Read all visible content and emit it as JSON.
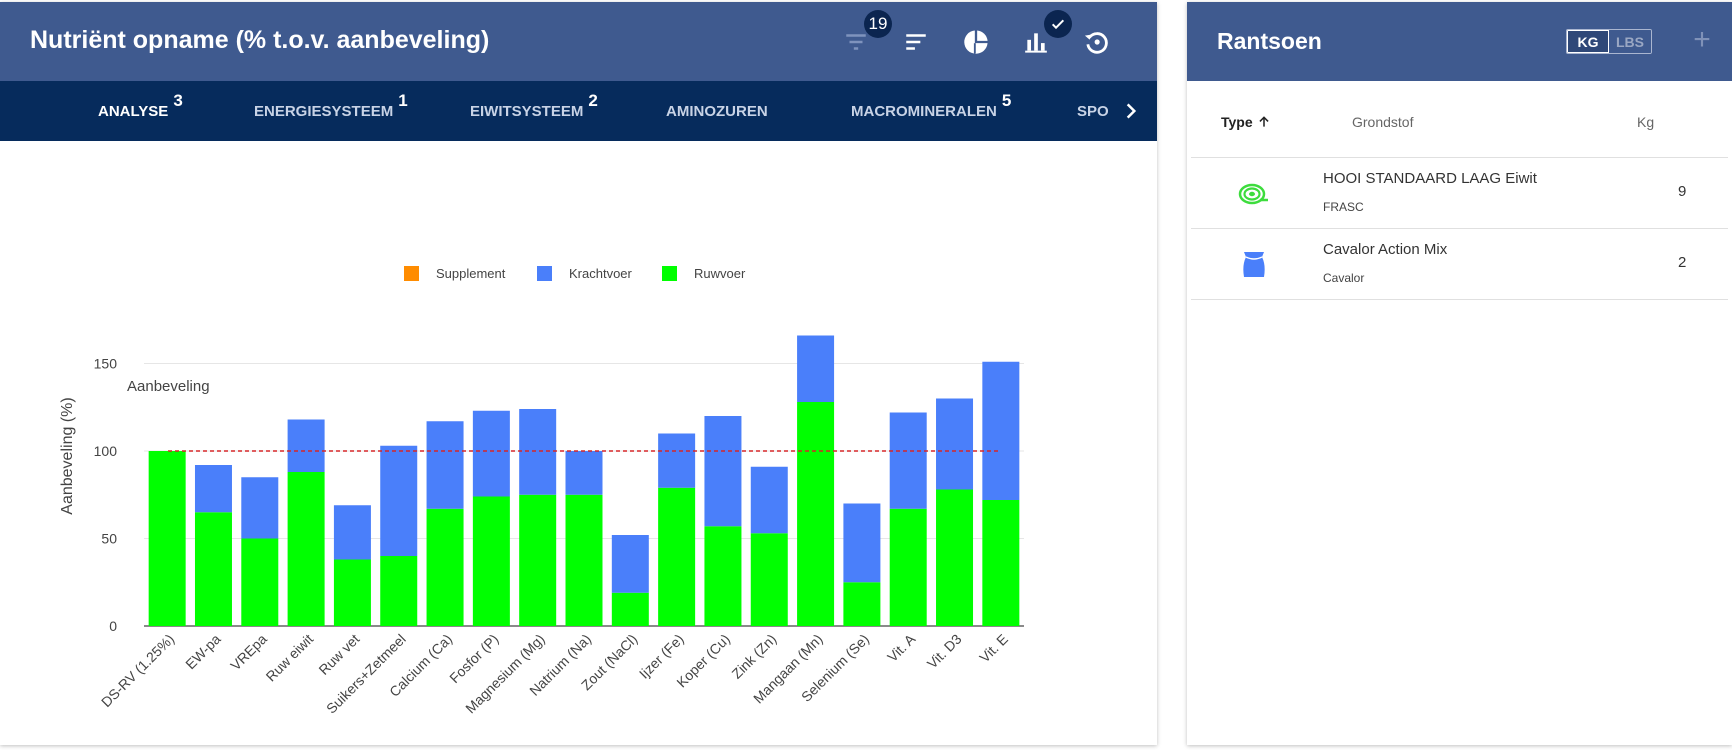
{
  "nutrient_panel": {
    "title": "Nutriënt opname (% t.o.v. aanbeveling)",
    "filter_badge": "19",
    "icons": [
      "filter-icon",
      "sort-icon",
      "pie-chart-icon",
      "bar-chart-icon",
      "check-icon",
      "reset-icon"
    ],
    "tabs": [
      {
        "label": "ANALYSE",
        "count": "3",
        "active": true
      },
      {
        "label": "ENERGIESYSTEEM",
        "count": "1"
      },
      {
        "label": "EIWITSYSTEEM",
        "count": "2"
      },
      {
        "label": "AMINOZUREN",
        "count": ""
      },
      {
        "label": "MACROMINERALEN",
        "count": "5"
      },
      {
        "label": "SPO",
        "count": ""
      }
    ]
  },
  "chart_data": {
    "type": "bar",
    "stacked": true,
    "ylabel": "Aanbeveling (%)",
    "ylim": [
      0,
      165
    ],
    "yticks": [
      0,
      50,
      100,
      150
    ],
    "grid": true,
    "legend_position": "top",
    "reference_line": {
      "value": 100,
      "label": "Aanbeveling",
      "color": "#d62728",
      "style": "dashed"
    },
    "categories": [
      "DS-RV (1.25%)",
      "EW-pa",
      "VREpa",
      "Ruw eiwit",
      "Ruw vet",
      "Suikers+Zetmeel",
      "Calcium (Ca)",
      "Fosfor (P)",
      "Magnesium (Mg)",
      "Natrium (Na)",
      "Zout (NaCl)",
      "Ijzer (Fe)",
      "Koper (Cu)",
      "Zink (Zn)",
      "Mangaan (Mn)",
      "Selenium (Se)",
      "Vit. A",
      "Vit. D3",
      "Vit. E"
    ],
    "series": [
      {
        "name": "Supplement",
        "color": "#ff8c00",
        "values": [
          0,
          0,
          0,
          0,
          0,
          0,
          0,
          0,
          0,
          0,
          0,
          0,
          0,
          0,
          0,
          0,
          0,
          0,
          0
        ]
      },
      {
        "name": "Krachtvoer",
        "color": "#4a7ffa",
        "values": [
          0,
          27,
          35,
          30,
          31,
          63,
          50,
          49,
          49,
          25,
          33,
          31,
          63,
          38,
          38,
          45,
          55,
          52,
          79
        ]
      },
      {
        "name": "Ruwvoer",
        "color": "#00ff00",
        "values": [
          100,
          65,
          50,
          88,
          38,
          40,
          67,
          74,
          75,
          75,
          19,
          79,
          57,
          53,
          128,
          25,
          67,
          78,
          72
        ]
      }
    ]
  },
  "rantsoen": {
    "title": "Rantsoen",
    "units": [
      "KG",
      "LBS"
    ],
    "active_unit": "KG",
    "columns": {
      "type": "Type",
      "grondstof": "Grondstof",
      "kg": "Kg"
    },
    "rows": [
      {
        "name": "HOOI STANDAARD LAAG Eiwit",
        "brand": "FRASC",
        "kg": "9",
        "icon": "hay-bale-icon",
        "icon_color": "#3ddc3d"
      },
      {
        "name": "Cavalor Action Mix",
        "brand": "Cavalor",
        "kg": "2",
        "icon": "feed-bag-icon",
        "icon_color": "#4a7ffa"
      }
    ]
  }
}
